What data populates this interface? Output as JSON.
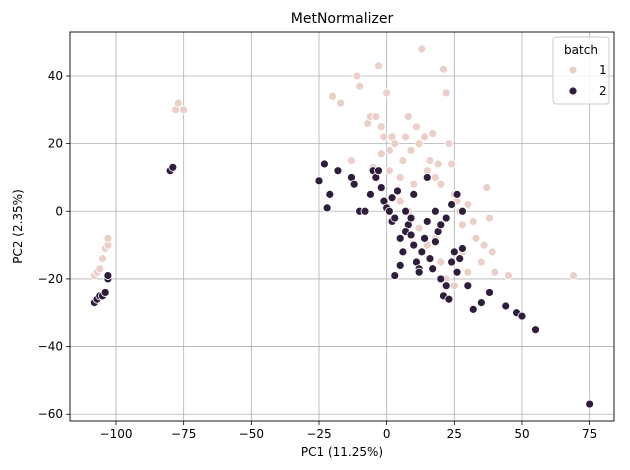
{
  "chart_data": {
    "type": "scatter",
    "title": "MetNormalizer",
    "xlabel": "PC1 (11.25%)",
    "ylabel": "PC2 (2.35%)",
    "xlim": [
      -117,
      84
    ],
    "ylim": [
      -62,
      53
    ],
    "xticks": [
      -100,
      -75,
      -50,
      -25,
      0,
      25,
      50,
      75
    ],
    "yticks": [
      -60,
      -40,
      -20,
      0,
      20,
      40
    ],
    "grid": true,
    "legend": {
      "title": "batch",
      "placement": "top-right"
    },
    "series": [
      {
        "name": "1",
        "color": "#ebd0c9",
        "points": [
          [
            -108,
            -19
          ],
          [
            -107,
            -18
          ],
          [
            -106,
            -17
          ],
          [
            -105,
            -14
          ],
          [
            -104,
            -11
          ],
          [
            -103,
            -10
          ],
          [
            -103,
            -8
          ],
          [
            -78,
            30
          ],
          [
            -77,
            32
          ],
          [
            -75,
            30
          ],
          [
            -20,
            34
          ],
          [
            -17,
            32
          ],
          [
            -13,
            15
          ],
          [
            -11,
            40
          ],
          [
            -10,
            37
          ],
          [
            -7,
            26
          ],
          [
            -6,
            28
          ],
          [
            -4,
            28
          ],
          [
            -3,
            43
          ],
          [
            -2,
            25
          ],
          [
            -1,
            22
          ],
          [
            0,
            35
          ],
          [
            1,
            18
          ],
          [
            2,
            22
          ],
          [
            3,
            20
          ],
          [
            5,
            10
          ],
          [
            6,
            15
          ],
          [
            7,
            22
          ],
          [
            8,
            28
          ],
          [
            9,
            18
          ],
          [
            10,
            8
          ],
          [
            11,
            25
          ],
          [
            12,
            20
          ],
          [
            13,
            48
          ],
          [
            14,
            22
          ],
          [
            15,
            12
          ],
          [
            16,
            15
          ],
          [
            17,
            23
          ],
          [
            18,
            10
          ],
          [
            19,
            14
          ],
          [
            20,
            8
          ],
          [
            21,
            42
          ],
          [
            22,
            35
          ],
          [
            23,
            20
          ],
          [
            24,
            14
          ],
          [
            25,
            5
          ],
          [
            26,
            3
          ],
          [
            27,
            0
          ],
          [
            28,
            -4
          ],
          [
            30,
            2
          ],
          [
            32,
            -3
          ],
          [
            33,
            -8
          ],
          [
            35,
            -15
          ],
          [
            36,
            -10
          ],
          [
            37,
            7
          ],
          [
            38,
            -2
          ],
          [
            39,
            -12
          ],
          [
            40,
            -18
          ],
          [
            45,
            -19
          ],
          [
            69,
            -19
          ],
          [
            5,
            3
          ],
          [
            8,
            0
          ],
          [
            12,
            -5
          ],
          [
            15,
            -10
          ],
          [
            18,
            -8
          ],
          [
            20,
            -15
          ],
          [
            22,
            -20
          ],
          [
            25,
            -22
          ],
          [
            28,
            -12
          ],
          [
            30,
            -18
          ],
          [
            -5,
            13
          ],
          [
            -2,
            17
          ],
          [
            1,
            12
          ]
        ]
      },
      {
        "name": "2",
        "color": "#2e1e3b",
        "points": [
          [
            -108,
            -27
          ],
          [
            -107,
            -26
          ],
          [
            -106,
            -25
          ],
          [
            -105,
            -25
          ],
          [
            -104,
            -24
          ],
          [
            -103,
            -20
          ],
          [
            -103,
            -19
          ],
          [
            -80,
            12
          ],
          [
            -79,
            13
          ],
          [
            -25,
            9
          ],
          [
            -23,
            14
          ],
          [
            -22,
            1
          ],
          [
            -21,
            5
          ],
          [
            -18,
            12
          ],
          [
            -13,
            10
          ],
          [
            -12,
            8
          ],
          [
            -10,
            0
          ],
          [
            -8,
            0
          ],
          [
            -6,
            5
          ],
          [
            -5,
            12
          ],
          [
            -4,
            10
          ],
          [
            -3,
            12
          ],
          [
            -2,
            7
          ],
          [
            -1,
            3
          ],
          [
            0,
            1
          ],
          [
            1,
            0
          ],
          [
            2,
            -3
          ],
          [
            3,
            -2
          ],
          [
            4,
            6
          ],
          [
            5,
            -8
          ],
          [
            6,
            -12
          ],
          [
            7,
            0
          ],
          [
            8,
            -4
          ],
          [
            9,
            -2
          ],
          [
            10,
            -10
          ],
          [
            11,
            -15
          ],
          [
            12,
            -17
          ],
          [
            13,
            -12
          ],
          [
            14,
            -8
          ],
          [
            15,
            -3
          ],
          [
            16,
            -14
          ],
          [
            17,
            -17
          ],
          [
            18,
            -9
          ],
          [
            19,
            -6
          ],
          [
            20,
            -20
          ],
          [
            21,
            -25
          ],
          [
            22,
            -22
          ],
          [
            23,
            -26
          ],
          [
            24,
            -15
          ],
          [
            25,
            -12
          ],
          [
            26,
            -18
          ],
          [
            27,
            -14
          ],
          [
            28,
            -11
          ],
          [
            30,
            -22
          ],
          [
            32,
            -29
          ],
          [
            35,
            -27
          ],
          [
            38,
            -24
          ],
          [
            44,
            -28
          ],
          [
            48,
            -30
          ],
          [
            50,
            -31
          ],
          [
            55,
            -35
          ],
          [
            75,
            -57
          ],
          [
            3,
            -19
          ],
          [
            5,
            -16
          ],
          [
            7,
            -6
          ],
          [
            9,
            -7
          ],
          [
            12,
            -18
          ],
          [
            15,
            10
          ],
          [
            18,
            0
          ],
          [
            20,
            -4
          ],
          [
            22,
            -2
          ],
          [
            24,
            2
          ],
          [
            26,
            5
          ],
          [
            28,
            0
          ],
          [
            10,
            5
          ],
          [
            2,
            4
          ]
        ]
      }
    ]
  }
}
